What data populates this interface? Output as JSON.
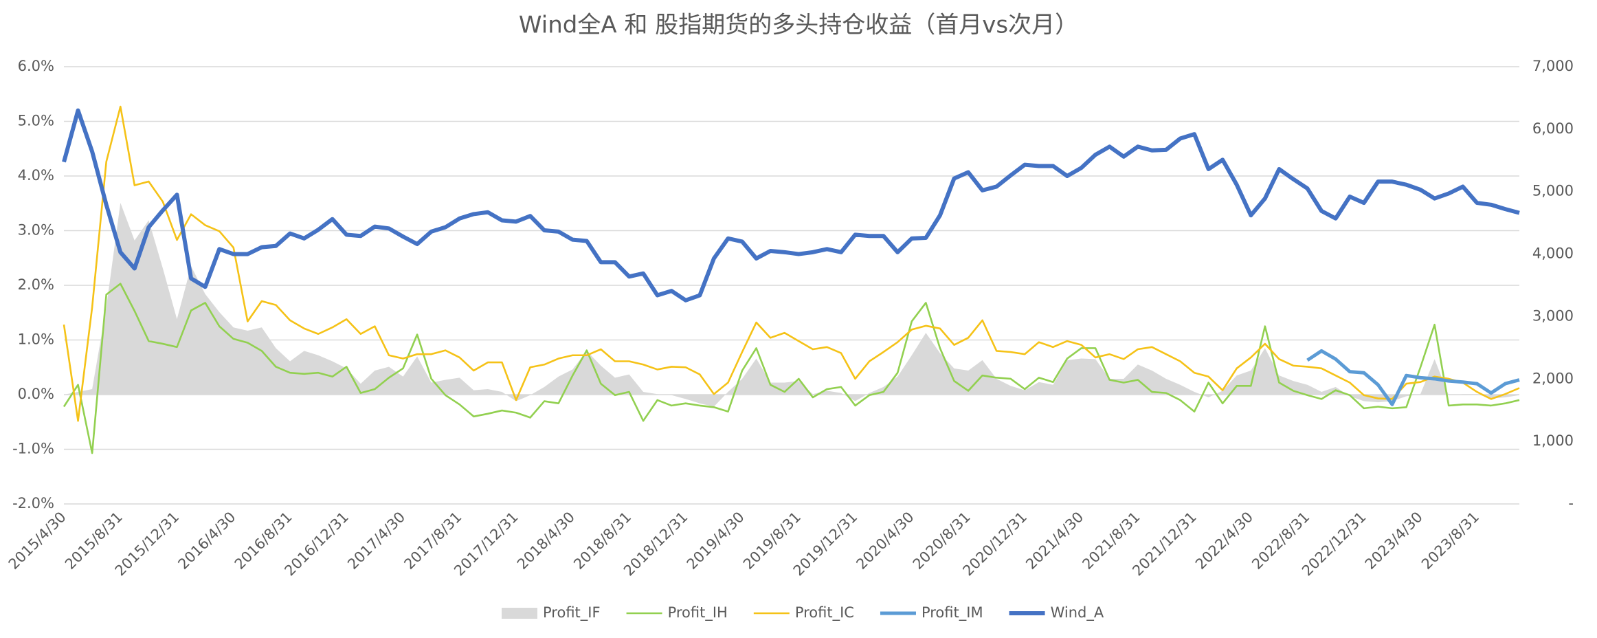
{
  "chart_data": {
    "type": "line",
    "title": "Wind全A 和 股指期货的多头持仓收益（首月vs次月）",
    "categories": [
      "2015/4/30",
      null,
      null,
      null,
      "2015/8/31",
      null,
      null,
      null,
      "2015/12/31",
      null,
      null,
      null,
      "2016/4/30",
      null,
      null,
      null,
      "2016/8/31",
      null,
      null,
      null,
      "2016/12/31",
      null,
      null,
      null,
      "2017/4/30",
      null,
      null,
      null,
      "2017/8/31",
      null,
      null,
      null,
      "2017/12/31",
      null,
      null,
      null,
      "2018/4/30",
      null,
      null,
      null,
      "2018/8/31",
      null,
      null,
      null,
      "2018/12/31",
      null,
      null,
      null,
      "2019/4/30",
      null,
      null,
      null,
      "2019/8/31",
      null,
      null,
      null,
      "2019/12/31",
      null,
      null,
      null,
      "2020/4/30",
      null,
      null,
      null,
      "2020/8/31",
      null,
      null,
      null,
      "2020/12/31",
      null,
      null,
      null,
      "2021/4/30",
      null,
      null,
      null,
      "2021/8/31",
      null,
      null,
      null,
      "2021/12/31",
      null,
      null,
      null,
      "2022/4/30",
      null,
      null,
      null,
      "2022/8/31",
      null,
      null,
      null,
      "2022/12/31",
      null,
      null,
      null,
      "2023/4/30",
      null,
      null,
      null,
      "2023/8/31",
      null,
      null,
      null
    ],
    "ylim": [
      -2,
      6
    ],
    "yticks": [
      {
        "value": -2,
        "label": "-2.0%"
      },
      {
        "value": -1,
        "label": "-1.0%"
      },
      {
        "value": 0,
        "label": "0.0%"
      },
      {
        "value": 1,
        "label": "1.0%"
      },
      {
        "value": 2,
        "label": "2.0%"
      },
      {
        "value": 3,
        "label": "3.0%"
      },
      {
        "value": 4,
        "label": "4.0%"
      },
      {
        "value": 5,
        "label": "5.0%"
      },
      {
        "value": 6,
        "label": "6.0%"
      }
    ],
    "y2lim": [
      0,
      7000
    ],
    "y2ticks": [
      {
        "value": 0,
        "label": "-"
      },
      {
        "value": 1000,
        "label": "1,000"
      },
      {
        "value": 2000,
        "label": "2,000"
      },
      {
        "value": 3000,
        "label": "3,000"
      },
      {
        "value": 4000,
        "label": "4,000"
      },
      {
        "value": 5000,
        "label": "5,000"
      },
      {
        "value": 6000,
        "label": "6,000"
      },
      {
        "value": 7000,
        "label": "7,000"
      }
    ],
    "grid": true,
    "legend": "bottom",
    "series": [
      {
        "name": "Profit_IF",
        "type": "area",
        "color": "#d9d9d9",
        "values": [
          0.0,
          0.05,
          0.1,
          1.6,
          3.51,
          2.82,
          3.19,
          2.31,
          1.38,
          2.35,
          1.84,
          1.51,
          1.23,
          1.17,
          1.23,
          0.85,
          0.61,
          0.8,
          0.72,
          0.61,
          0.48,
          0.2,
          0.44,
          0.51,
          0.33,
          0.7,
          0.22,
          0.27,
          0.31,
          0.08,
          0.1,
          0.05,
          -0.12,
          -0.01,
          0.14,
          0.33,
          0.46,
          0.8,
          0.53,
          0.31,
          0.37,
          0.05,
          0.01,
          -0.01,
          -0.08,
          -0.16,
          -0.22,
          0.05,
          0.29,
          0.66,
          0.22,
          0.22,
          0.25,
          0.01,
          0.07,
          0.03,
          -0.12,
          0.03,
          0.14,
          0.33,
          0.72,
          1.13,
          0.76,
          0.48,
          0.44,
          0.63,
          0.29,
          0.16,
          0.08,
          0.23,
          0.18,
          0.63,
          0.66,
          0.65,
          0.29,
          0.29,
          0.55,
          0.44,
          0.29,
          0.18,
          0.05,
          -0.05,
          0.07,
          0.35,
          0.44,
          0.85,
          0.35,
          0.25,
          0.18,
          0.05,
          0.14,
          -0.03,
          -0.12,
          -0.14,
          -0.12,
          -0.03,
          0.01,
          0.65,
          -0.01,
          0.01,
          0.01,
          -0.07,
          -0.05,
          -0.01
        ]
      },
      {
        "name": "Profit_IH",
        "type": "line",
        "color": "#92d050",
        "values": [
          -0.22,
          0.18,
          -1.07,
          1.83,
          2.03,
          1.53,
          0.98,
          0.93,
          0.87,
          1.54,
          1.68,
          1.25,
          1.02,
          0.95,
          0.8,
          0.51,
          0.4,
          0.38,
          0.4,
          0.33,
          0.51,
          0.03,
          0.1,
          0.31,
          0.48,
          1.1,
          0.29,
          -0.01,
          -0.18,
          -0.4,
          -0.35,
          -0.29,
          -0.33,
          -0.42,
          -0.12,
          -0.16,
          0.35,
          0.81,
          0.2,
          -0.01,
          0.05,
          -0.48,
          -0.1,
          -0.2,
          -0.16,
          -0.2,
          -0.23,
          -0.31,
          0.44,
          0.85,
          0.18,
          0.05,
          0.29,
          -0.05,
          0.1,
          0.14,
          -0.2,
          -0.01,
          0.05,
          0.4,
          1.34,
          1.68,
          0.85,
          0.25,
          0.07,
          0.35,
          0.31,
          0.29,
          0.1,
          0.31,
          0.23,
          0.66,
          0.85,
          0.85,
          0.27,
          0.22,
          0.27,
          0.05,
          0.03,
          -0.1,
          -0.31,
          0.22,
          -0.16,
          0.16,
          0.16,
          1.25,
          0.22,
          0.07,
          -0.01,
          -0.08,
          0.08,
          -0.01,
          -0.25,
          -0.22,
          -0.25,
          -0.23,
          0.5,
          1.28,
          -0.2,
          -0.18,
          -0.18,
          -0.2,
          -0.16,
          -0.1
        ]
      },
      {
        "name": "Profit_IC",
        "type": "line",
        "color": "#f5c217",
        "values": [
          1.28,
          -0.48,
          1.6,
          4.26,
          5.27,
          3.83,
          3.9,
          3.53,
          2.83,
          3.3,
          3.1,
          2.99,
          2.69,
          1.34,
          1.71,
          1.64,
          1.36,
          1.21,
          1.11,
          1.23,
          1.38,
          1.11,
          1.25,
          0.72,
          0.66,
          0.74,
          0.74,
          0.81,
          0.68,
          0.44,
          0.59,
          0.59,
          -0.1,
          0.5,
          0.55,
          0.66,
          0.72,
          0.72,
          0.83,
          0.61,
          0.61,
          0.55,
          0.46,
          0.51,
          0.5,
          0.37,
          0.01,
          0.22,
          0.78,
          1.32,
          1.04,
          1.13,
          0.98,
          0.83,
          0.87,
          0.76,
          0.29,
          0.61,
          0.78,
          0.96,
          1.19,
          1.26,
          1.21,
          0.91,
          1.04,
          1.36,
          0.8,
          0.78,
          0.74,
          0.96,
          0.87,
          0.98,
          0.91,
          0.68,
          0.74,
          0.65,
          0.83,
          0.87,
          0.74,
          0.61,
          0.4,
          0.33,
          0.08,
          0.48,
          0.68,
          0.93,
          0.65,
          0.53,
          0.51,
          0.48,
          0.35,
          0.22,
          -0.01,
          -0.07,
          -0.08,
          0.2,
          0.23,
          0.33,
          0.29,
          0.22,
          0.05,
          -0.08,
          0.01,
          0.12
        ]
      },
      {
        "name": "Profit_IM",
        "type": "line",
        "color": "#5b9bd5",
        "width": 5,
        "values": [
          null,
          null,
          null,
          null,
          null,
          null,
          null,
          null,
          null,
          null,
          null,
          null,
          null,
          null,
          null,
          null,
          null,
          null,
          null,
          null,
          null,
          null,
          null,
          null,
          null,
          null,
          null,
          null,
          null,
          null,
          null,
          null,
          null,
          null,
          null,
          null,
          null,
          null,
          null,
          null,
          null,
          null,
          null,
          null,
          null,
          null,
          null,
          null,
          null,
          null,
          null,
          null,
          null,
          null,
          null,
          null,
          null,
          null,
          null,
          null,
          null,
          null,
          null,
          null,
          null,
          null,
          null,
          null,
          null,
          null,
          null,
          null,
          null,
          null,
          null,
          null,
          null,
          null,
          null,
          null,
          null,
          null,
          null,
          null,
          null,
          null,
          null,
          null,
          0.63,
          0.8,
          0.65,
          0.42,
          0.4,
          0.18,
          -0.18,
          0.35,
          0.31,
          0.29,
          0.25,
          0.23,
          0.2,
          0.03,
          0.2,
          0.27
        ]
      },
      {
        "name": "Wind_A",
        "type": "line",
        "axis": "y2",
        "color": "#4472c4",
        "width": 6,
        "values": [
          5475,
          6300,
          5640,
          4790,
          4030,
          3770,
          4430,
          4700,
          4950,
          3610,
          3475,
          4080,
          4000,
          4000,
          4110,
          4130,
          4330,
          4250,
          4390,
          4560,
          4310,
          4290,
          4440,
          4410,
          4280,
          4160,
          4360,
          4430,
          4570,
          4640,
          4670,
          4540,
          4520,
          4610,
          4380,
          4360,
          4230,
          4210,
          3870,
          3870,
          3640,
          3690,
          3340,
          3410,
          3260,
          3340,
          3930,
          4250,
          4200,
          3930,
          4050,
          4030,
          4000,
          4030,
          4080,
          4030,
          4310,
          4290,
          4290,
          4030,
          4250,
          4260,
          4620,
          5210,
          5310,
          5020,
          5080,
          5260,
          5430,
          5410,
          5410,
          5250,
          5380,
          5590,
          5720,
          5560,
          5720,
          5660,
          5670,
          5850,
          5920,
          5360,
          5510,
          5110,
          4620,
          4890,
          5360,
          5200,
          5050,
          4690,
          4570,
          4920,
          4820,
          5160,
          5160,
          5110,
          5030,
          4890,
          4970,
          5080,
          4820,
          4790,
          4720,
          4660
        ]
      }
    ]
  }
}
